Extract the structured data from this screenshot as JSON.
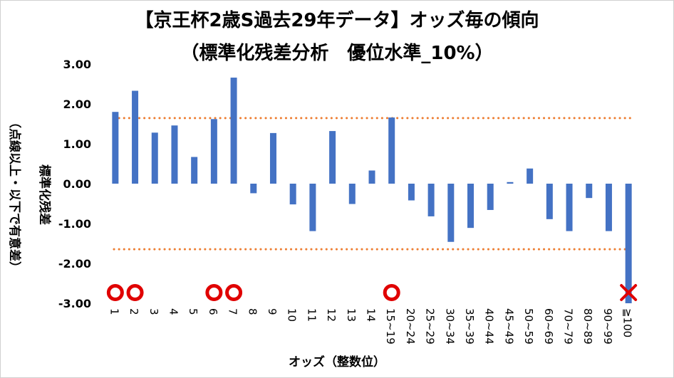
{
  "chart_data": {
    "type": "bar",
    "title": "【京王杯2歳S過去29年データ】オッズ毎の傾向",
    "subtitle": "（標準化残差分析　優位水準_10%）",
    "xlabel": "オッズ（整数位）",
    "ylabel_main": "標準化残差",
    "ylabel_sub": "（点線以上・以下で有意差）",
    "ylim": [
      -3.0,
      3.0
    ],
    "yticks": [
      "3.00",
      "2.00",
      "1.00",
      "0.00",
      "-1.00",
      "-2.00",
      "-3.00"
    ],
    "ytick_values": [
      3,
      2,
      1,
      0,
      -1,
      -2,
      -3
    ],
    "threshold_lines": [
      1.645,
      -1.645
    ],
    "categories": [
      "1",
      "2",
      "3",
      "4",
      "5",
      "6",
      "7",
      "8",
      "9",
      "10",
      "11",
      "12",
      "13",
      "14",
      "15~19",
      "20~24",
      "25~29",
      "30~34",
      "35~39",
      "40~44",
      "45~49",
      "50~59",
      "60~69",
      "70~79",
      "80~89",
      "90~99",
      "≧100"
    ],
    "values": [
      1.8,
      2.33,
      1.28,
      1.46,
      0.67,
      1.62,
      2.66,
      -0.24,
      1.27,
      -0.52,
      -1.19,
      1.32,
      -0.51,
      0.33,
      1.66,
      -0.42,
      -0.82,
      -1.46,
      -1.11,
      -0.66,
      0.04,
      0.38,
      -0.89,
      -1.19,
      -0.36,
      -1.19,
      -3.0
    ],
    "markers": [
      {
        "category": "1",
        "symbol": "circle"
      },
      {
        "category": "2",
        "symbol": "circle"
      },
      {
        "category": "6",
        "symbol": "circle"
      },
      {
        "category": "7",
        "symbol": "circle"
      },
      {
        "category": "15~19",
        "symbol": "circle"
      },
      {
        "category": "≧100",
        "symbol": "cross"
      }
    ],
    "colors": {
      "bar": "#4472C4",
      "threshold": "#ED7D31",
      "marker": "#E00000"
    },
    "grid": false,
    "legend": "none"
  }
}
